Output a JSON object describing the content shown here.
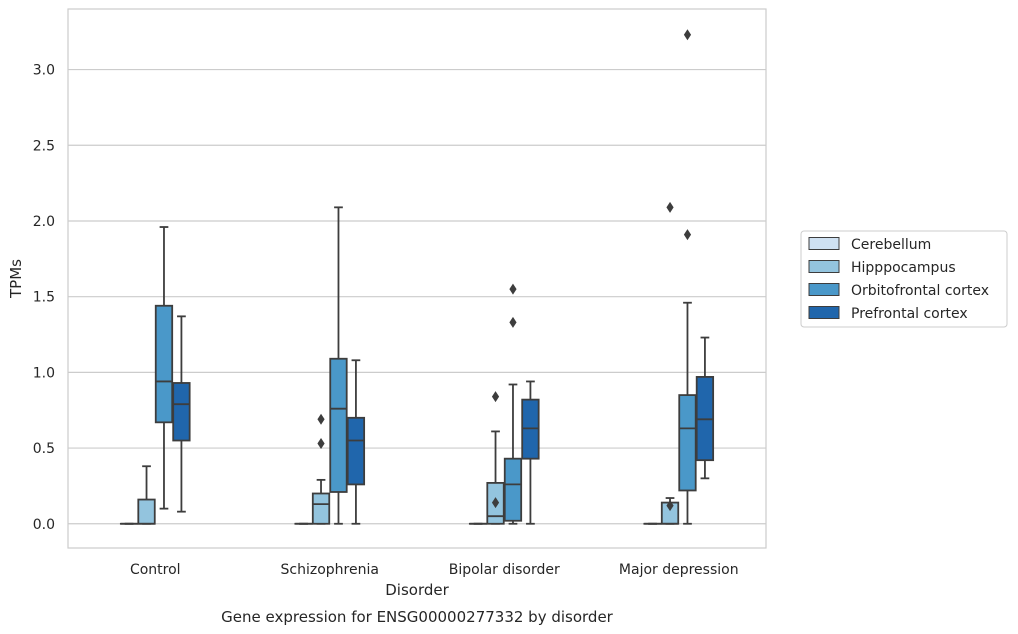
{
  "caption": "Gene expression for ENSG00000277332 by disorder",
  "chart_data": {
    "type": "box",
    "xlabel": "Disorder",
    "ylabel": "TPMs",
    "ylim": [
      -0.16,
      3.4
    ],
    "yticks": [
      0.0,
      0.5,
      1.0,
      1.5,
      2.0,
      2.5,
      3.0
    ],
    "ytick_labels": [
      "0.0",
      "0.5",
      "1.0",
      "1.5",
      "2.0",
      "2.5",
      "3.0"
    ],
    "grid": "horizontal",
    "legend_position": "right",
    "categories": [
      "Control",
      "Schizophrenia",
      "Bipolar disorder",
      "Major depression"
    ],
    "series": [
      {
        "name": "Cerebellum",
        "color": "#cfe1f2",
        "boxes": [
          {
            "whislo": 0,
            "q1": 0,
            "med": 0,
            "q3": 0,
            "whishi": 0,
            "fliers": []
          },
          {
            "whislo": 0,
            "q1": 0,
            "med": 0,
            "q3": 0,
            "whishi": 0,
            "fliers": []
          },
          {
            "whislo": 0,
            "q1": 0,
            "med": 0,
            "q3": 0,
            "whishi": 0,
            "fliers": []
          },
          {
            "whislo": 0,
            "q1": 0,
            "med": 0,
            "q3": 0,
            "whishi": 0,
            "fliers": []
          }
        ]
      },
      {
        "name": "Hipppocampus",
        "color": "#93c4de",
        "boxes": [
          {
            "whislo": 0,
            "q1": 0,
            "med": 0,
            "q3": 0.16,
            "whishi": 0.38,
            "fliers": []
          },
          {
            "whislo": 0,
            "q1": 0,
            "med": 0.13,
            "q3": 0.2,
            "whishi": 0.29,
            "fliers": [
              0.53,
              0.69
            ]
          },
          {
            "whislo": 0,
            "q1": 0,
            "med": 0.05,
            "q3": 0.27,
            "whishi": 0.61,
            "fliers": [
              0.14,
              0.84
            ]
          },
          {
            "whislo": 0,
            "q1": 0,
            "med": 0,
            "q3": 0.14,
            "whishi": 0.17,
            "fliers": [
              0.12,
              2.09
            ]
          }
        ]
      },
      {
        "name": "Orbitofrontal cortex",
        "color": "#4a98c9",
        "boxes": [
          {
            "whislo": 0.1,
            "q1": 0.67,
            "med": 0.94,
            "q3": 1.44,
            "whishi": 1.96,
            "fliers": []
          },
          {
            "whislo": 0,
            "q1": 0.21,
            "med": 0.76,
            "q3": 1.09,
            "whishi": 2.09,
            "fliers": []
          },
          {
            "whislo": 0,
            "q1": 0.02,
            "med": 0.26,
            "q3": 0.43,
            "whishi": 0.92,
            "fliers": [
              1.33,
              1.55
            ]
          },
          {
            "whislo": 0,
            "q1": 0.22,
            "med": 0.63,
            "q3": 0.85,
            "whishi": 1.46,
            "fliers": [
              1.91,
              3.23
            ]
          }
        ]
      },
      {
        "name": "Prefrontal cortex",
        "color": "#2066ac",
        "boxes": [
          {
            "whislo": 0.08,
            "q1": 0.55,
            "med": 0.79,
            "q3": 0.93,
            "whishi": 1.37,
            "fliers": []
          },
          {
            "whislo": 0,
            "q1": 0.26,
            "med": 0.55,
            "q3": 0.7,
            "whishi": 1.08,
            "fliers": []
          },
          {
            "whislo": 0,
            "q1": 0.43,
            "med": 0.63,
            "q3": 0.82,
            "whishi": 0.94,
            "fliers": []
          },
          {
            "whislo": 0.3,
            "q1": 0.42,
            "med": 0.69,
            "q3": 0.97,
            "whishi": 1.23,
            "fliers": []
          }
        ]
      }
    ]
  }
}
